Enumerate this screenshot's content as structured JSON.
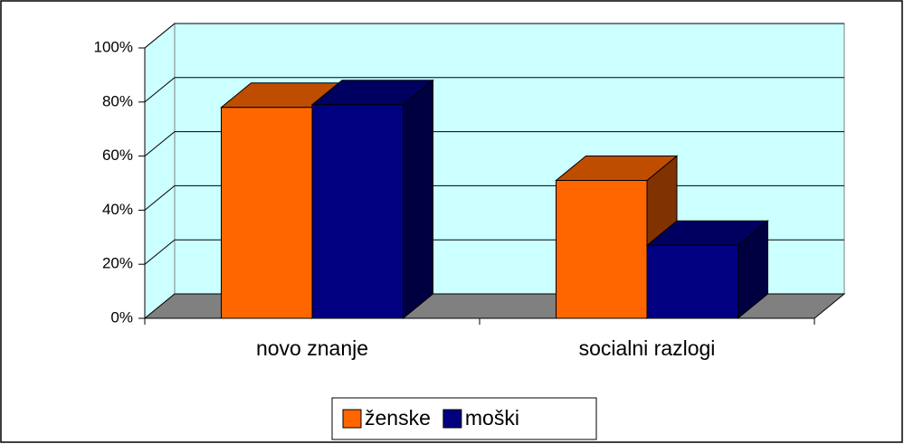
{
  "chart_data": {
    "type": "bar",
    "categories": [
      "novo znanje",
      "socialni razlogi"
    ],
    "series": [
      {
        "name": "ženske",
        "color": "#ff6600",
        "values": [
          78,
          51
        ]
      },
      {
        "name": "moški",
        "color": "#000080",
        "values": [
          79,
          27
        ]
      }
    ],
    "ylim": [
      0,
      100
    ],
    "yticks": [
      {
        "value": 0,
        "label": "0%"
      },
      {
        "value": 20,
        "label": "20%"
      },
      {
        "value": 40,
        "label": "40%"
      },
      {
        "value": 60,
        "label": "60%"
      },
      {
        "value": 80,
        "label": "80%"
      },
      {
        "value": 100,
        "label": "100%"
      }
    ],
    "grid": true,
    "legend": "bottom"
  }
}
